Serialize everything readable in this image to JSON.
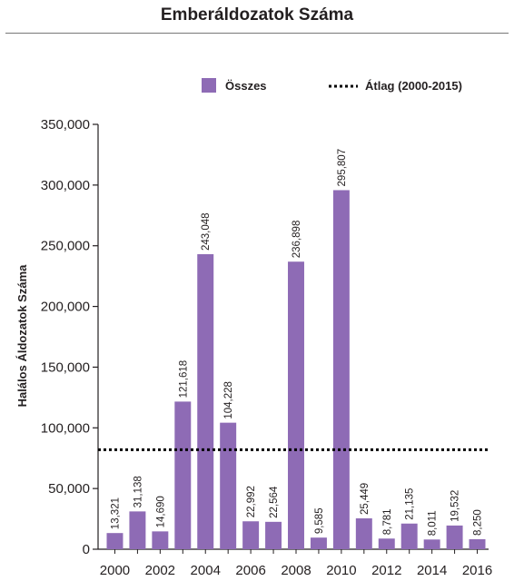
{
  "chart_data": {
    "type": "bar",
    "title": "Emberáldozatok Száma",
    "ylabel": "Halálos Áldozatok Száma",
    "xlabel": "",
    "ylim": [
      0,
      350000
    ],
    "yticks": [
      0,
      50000,
      100000,
      150000,
      200000,
      250000,
      300000,
      350000
    ],
    "ytick_labels": [
      "0",
      "50,000",
      "100,000",
      "150,000",
      "200,000",
      "250,000",
      "300,000",
      "350,000"
    ],
    "categories": [
      "2000",
      "2001",
      "2002",
      "2003",
      "2004",
      "2005",
      "2006",
      "2007",
      "2008",
      "2009",
      "2010",
      "2011",
      "2012",
      "2013",
      "2014",
      "2015",
      "2016"
    ],
    "xtick_labels": [
      "2000",
      "2002",
      "2004",
      "2006",
      "2008",
      "2010",
      "2012",
      "2014",
      "2016"
    ],
    "series": [
      {
        "name": "Összes",
        "color": "#8e6bb5",
        "values": [
          13321,
          31138,
          14690,
          121618,
          243048,
          104228,
          22992,
          22564,
          236898,
          9585,
          295807,
          25449,
          8781,
          21135,
          8011,
          19532,
          8250
        ],
        "labels": [
          "13,321",
          "31,138",
          "14,690",
          "121,618",
          "243,048",
          "104,228",
          "22,992",
          "22,564",
          "236,898",
          "9,585",
          "295,807",
          "25,449",
          "8,781",
          "21,135",
          "8,011",
          "19,532",
          "8,250"
        ]
      }
    ],
    "reference_lines": [
      {
        "name": "Átlag (2000-2015)",
        "value": 82000,
        "style": "dotted",
        "color": "#000000"
      }
    ],
    "legend": {
      "position": "top",
      "items": [
        "Összes",
        "Átlag (2000-2015)"
      ]
    },
    "grid": false
  }
}
